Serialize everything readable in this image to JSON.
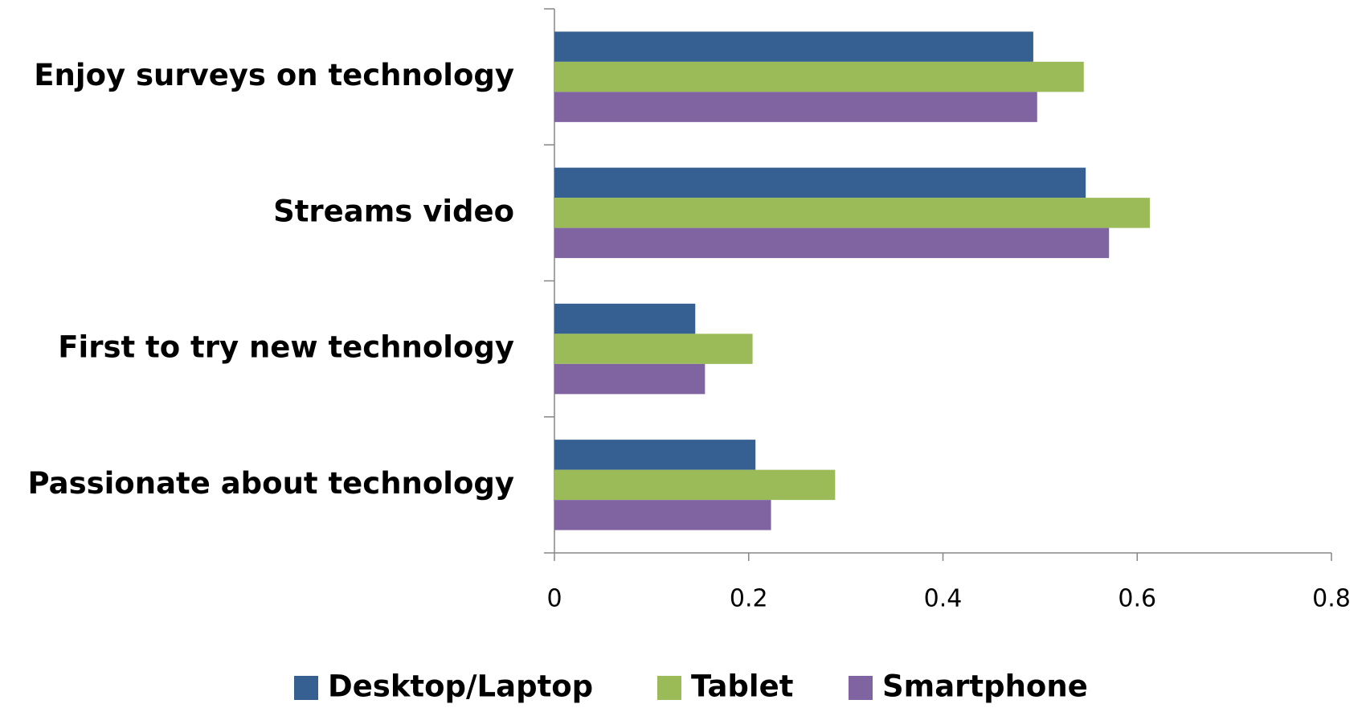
{
  "chart_data": {
    "type": "hbar",
    "categories": [
      "Enjoy surveys on technology",
      "Streams video",
      "First to try new technology",
      "Passionate about technology"
    ],
    "series": [
      {
        "name": "Desktop/Laptop",
        "color": "#376092",
        "values": [
          0.493,
          0.547,
          0.145,
          0.207
        ]
      },
      {
        "name": "Tablet",
        "color": "#9bbb59",
        "values": [
          0.545,
          0.613,
          0.204,
          0.289
        ]
      },
      {
        "name": "Smartphone",
        "color": "#8064a2",
        "values": [
          0.497,
          0.571,
          0.155,
          0.223
        ]
      }
    ],
    "xlim": [
      0,
      0.8
    ],
    "xticks": [
      0,
      0.2,
      0.4,
      0.6,
      0.8
    ],
    "grid": false,
    "legend": "bottom"
  }
}
